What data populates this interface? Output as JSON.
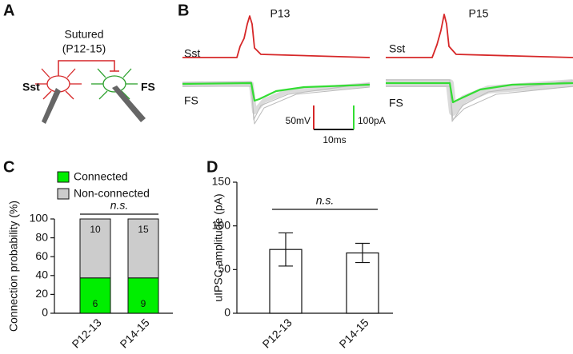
{
  "panels": {
    "a": {
      "letter": "A",
      "title": "Sutured",
      "subtitle": "(P12-15)",
      "left_cell": "Sst",
      "right_cell": "FS"
    },
    "b": {
      "letter": "B",
      "traces": [
        {
          "title": "P13",
          "top": "Sst",
          "bottom": "FS"
        },
        {
          "title": "P15",
          "top": "Sst",
          "bottom": "FS"
        }
      ],
      "scale_bars": {
        "voltage": "50mV",
        "current": "100pA",
        "time": "10ms"
      }
    },
    "c": {
      "letter": "C"
    },
    "d": {
      "letter": "D"
    }
  },
  "chart_data": [
    {
      "type": "stacked_bar",
      "ylabel": "Connection probability (%)",
      "categories": [
        "P12-13",
        "P14-15"
      ],
      "series": [
        {
          "name": "Connected",
          "color": "#00ee00",
          "values": [
            37.5,
            37.5
          ],
          "counts": [
            6,
            9
          ]
        },
        {
          "name": "Non-connected",
          "color": "#cccccc",
          "values": [
            62.5,
            62.5
          ],
          "counts": [
            10,
            15
          ]
        }
      ],
      "ylim": [
        0,
        100
      ],
      "yticks": [
        0,
        20,
        40,
        60,
        80,
        100
      ],
      "annotation": "n.s."
    },
    {
      "type": "bar",
      "ylabel": "uIPSC amplitude (pA)",
      "categories": [
        "P12-13",
        "P14-15"
      ],
      "values": [
        73,
        69
      ],
      "errors": [
        19,
        11
      ],
      "color": "#ffffff",
      "ylim": [
        0,
        150
      ],
      "yticks": [
        0,
        50,
        100,
        150
      ],
      "annotation": "n.s."
    }
  ]
}
